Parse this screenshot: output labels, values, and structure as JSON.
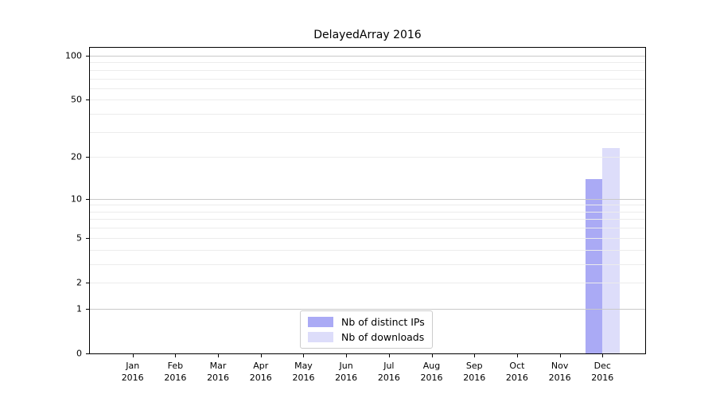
{
  "figure": {
    "title": "DelayedArray 2016"
  },
  "chart_data": {
    "type": "bar",
    "title": "DelayedArray 2016",
    "categories": [
      "Jan 2016",
      "Feb 2016",
      "Mar 2016",
      "Apr 2016",
      "May 2016",
      "Jun 2016",
      "Jul 2016",
      "Aug 2016",
      "Sep 2016",
      "Oct 2016",
      "Nov 2016",
      "Dec 2016"
    ],
    "series": [
      {
        "name": "Nb of distinct IPs",
        "color": "#aaaaf5",
        "values": [
          0,
          0,
          0,
          0,
          0,
          0,
          0,
          0,
          0,
          0,
          0,
          14
        ]
      },
      {
        "name": "Nb of downloads",
        "color": "#ddddfa",
        "values": [
          0,
          0,
          0,
          0,
          0,
          0,
          0,
          0,
          0,
          0,
          0,
          23
        ]
      }
    ],
    "xlabel": "",
    "ylabel": "",
    "yscale": "log1p",
    "ylim": [
      0,
      113.3
    ],
    "yticks": [
      0,
      1,
      2,
      5,
      10,
      20,
      50,
      100
    ],
    "grid_major": [
      1,
      10,
      100
    ],
    "grid_minor": [
      2,
      3,
      4,
      5,
      6,
      7,
      8,
      9,
      20,
      30,
      40,
      50,
      60,
      70,
      80,
      90
    ],
    "grid": "horizontal",
    "legend_position": "bottom-center"
  },
  "styles": {
    "grid_minor_color": "#ececec",
    "grid_major_color": "#c9c9c9",
    "axis_color": "#000000",
    "background": "#ffffff"
  }
}
